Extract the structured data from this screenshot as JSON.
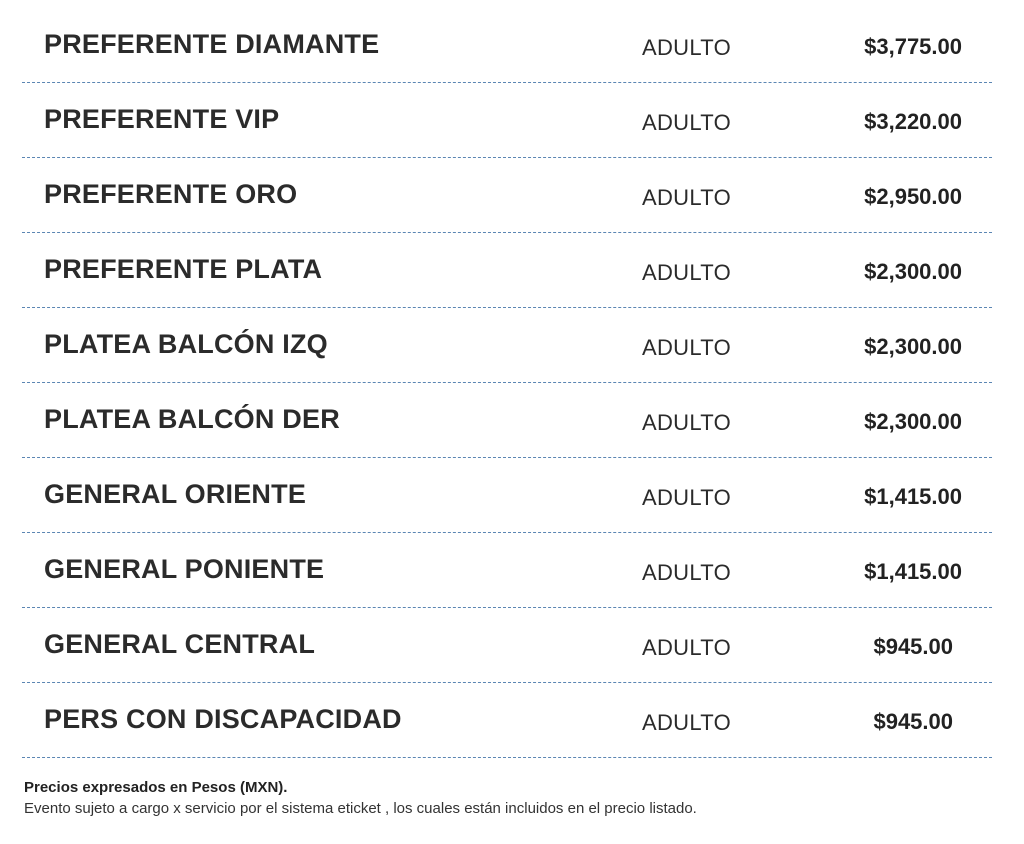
{
  "prices": [
    {
      "zone": "PREFERENTE DIAMANTE",
      "type": "ADULTO",
      "price": "$3,775.00"
    },
    {
      "zone": "PREFERENTE VIP",
      "type": "ADULTO",
      "price": "$3,220.00"
    },
    {
      "zone": "PREFERENTE ORO",
      "type": "ADULTO",
      "price": "$2,950.00"
    },
    {
      "zone": "PREFERENTE PLATA",
      "type": "ADULTO",
      "price": "$2,300.00"
    },
    {
      "zone": "PLATEA BALCÓN IZQ",
      "type": "ADULTO",
      "price": "$2,300.00"
    },
    {
      "zone": "PLATEA BALCÓN DER",
      "type": "ADULTO",
      "price": "$2,300.00"
    },
    {
      "zone": "GENERAL ORIENTE",
      "type": "ADULTO",
      "price": "$1,415.00"
    },
    {
      "zone": "GENERAL PONIENTE",
      "type": "ADULTO",
      "price": "$1,415.00"
    },
    {
      "zone": "GENERAL CENTRAL",
      "type": "ADULTO",
      "price": "$945.00"
    },
    {
      "zone": "PERS CON DISCAPACIDAD",
      "type": "ADULTO",
      "price": "$945.00"
    }
  ],
  "notes": {
    "currency": "Precios expresados en Pesos (MXN).",
    "service_charge": "Evento sujeto a cargo x servicio por el sistema eticket , los cuales están incluidos en el precio listado."
  },
  "colors": {
    "divider": "#5b86b3",
    "text": "#2b2b2b"
  }
}
